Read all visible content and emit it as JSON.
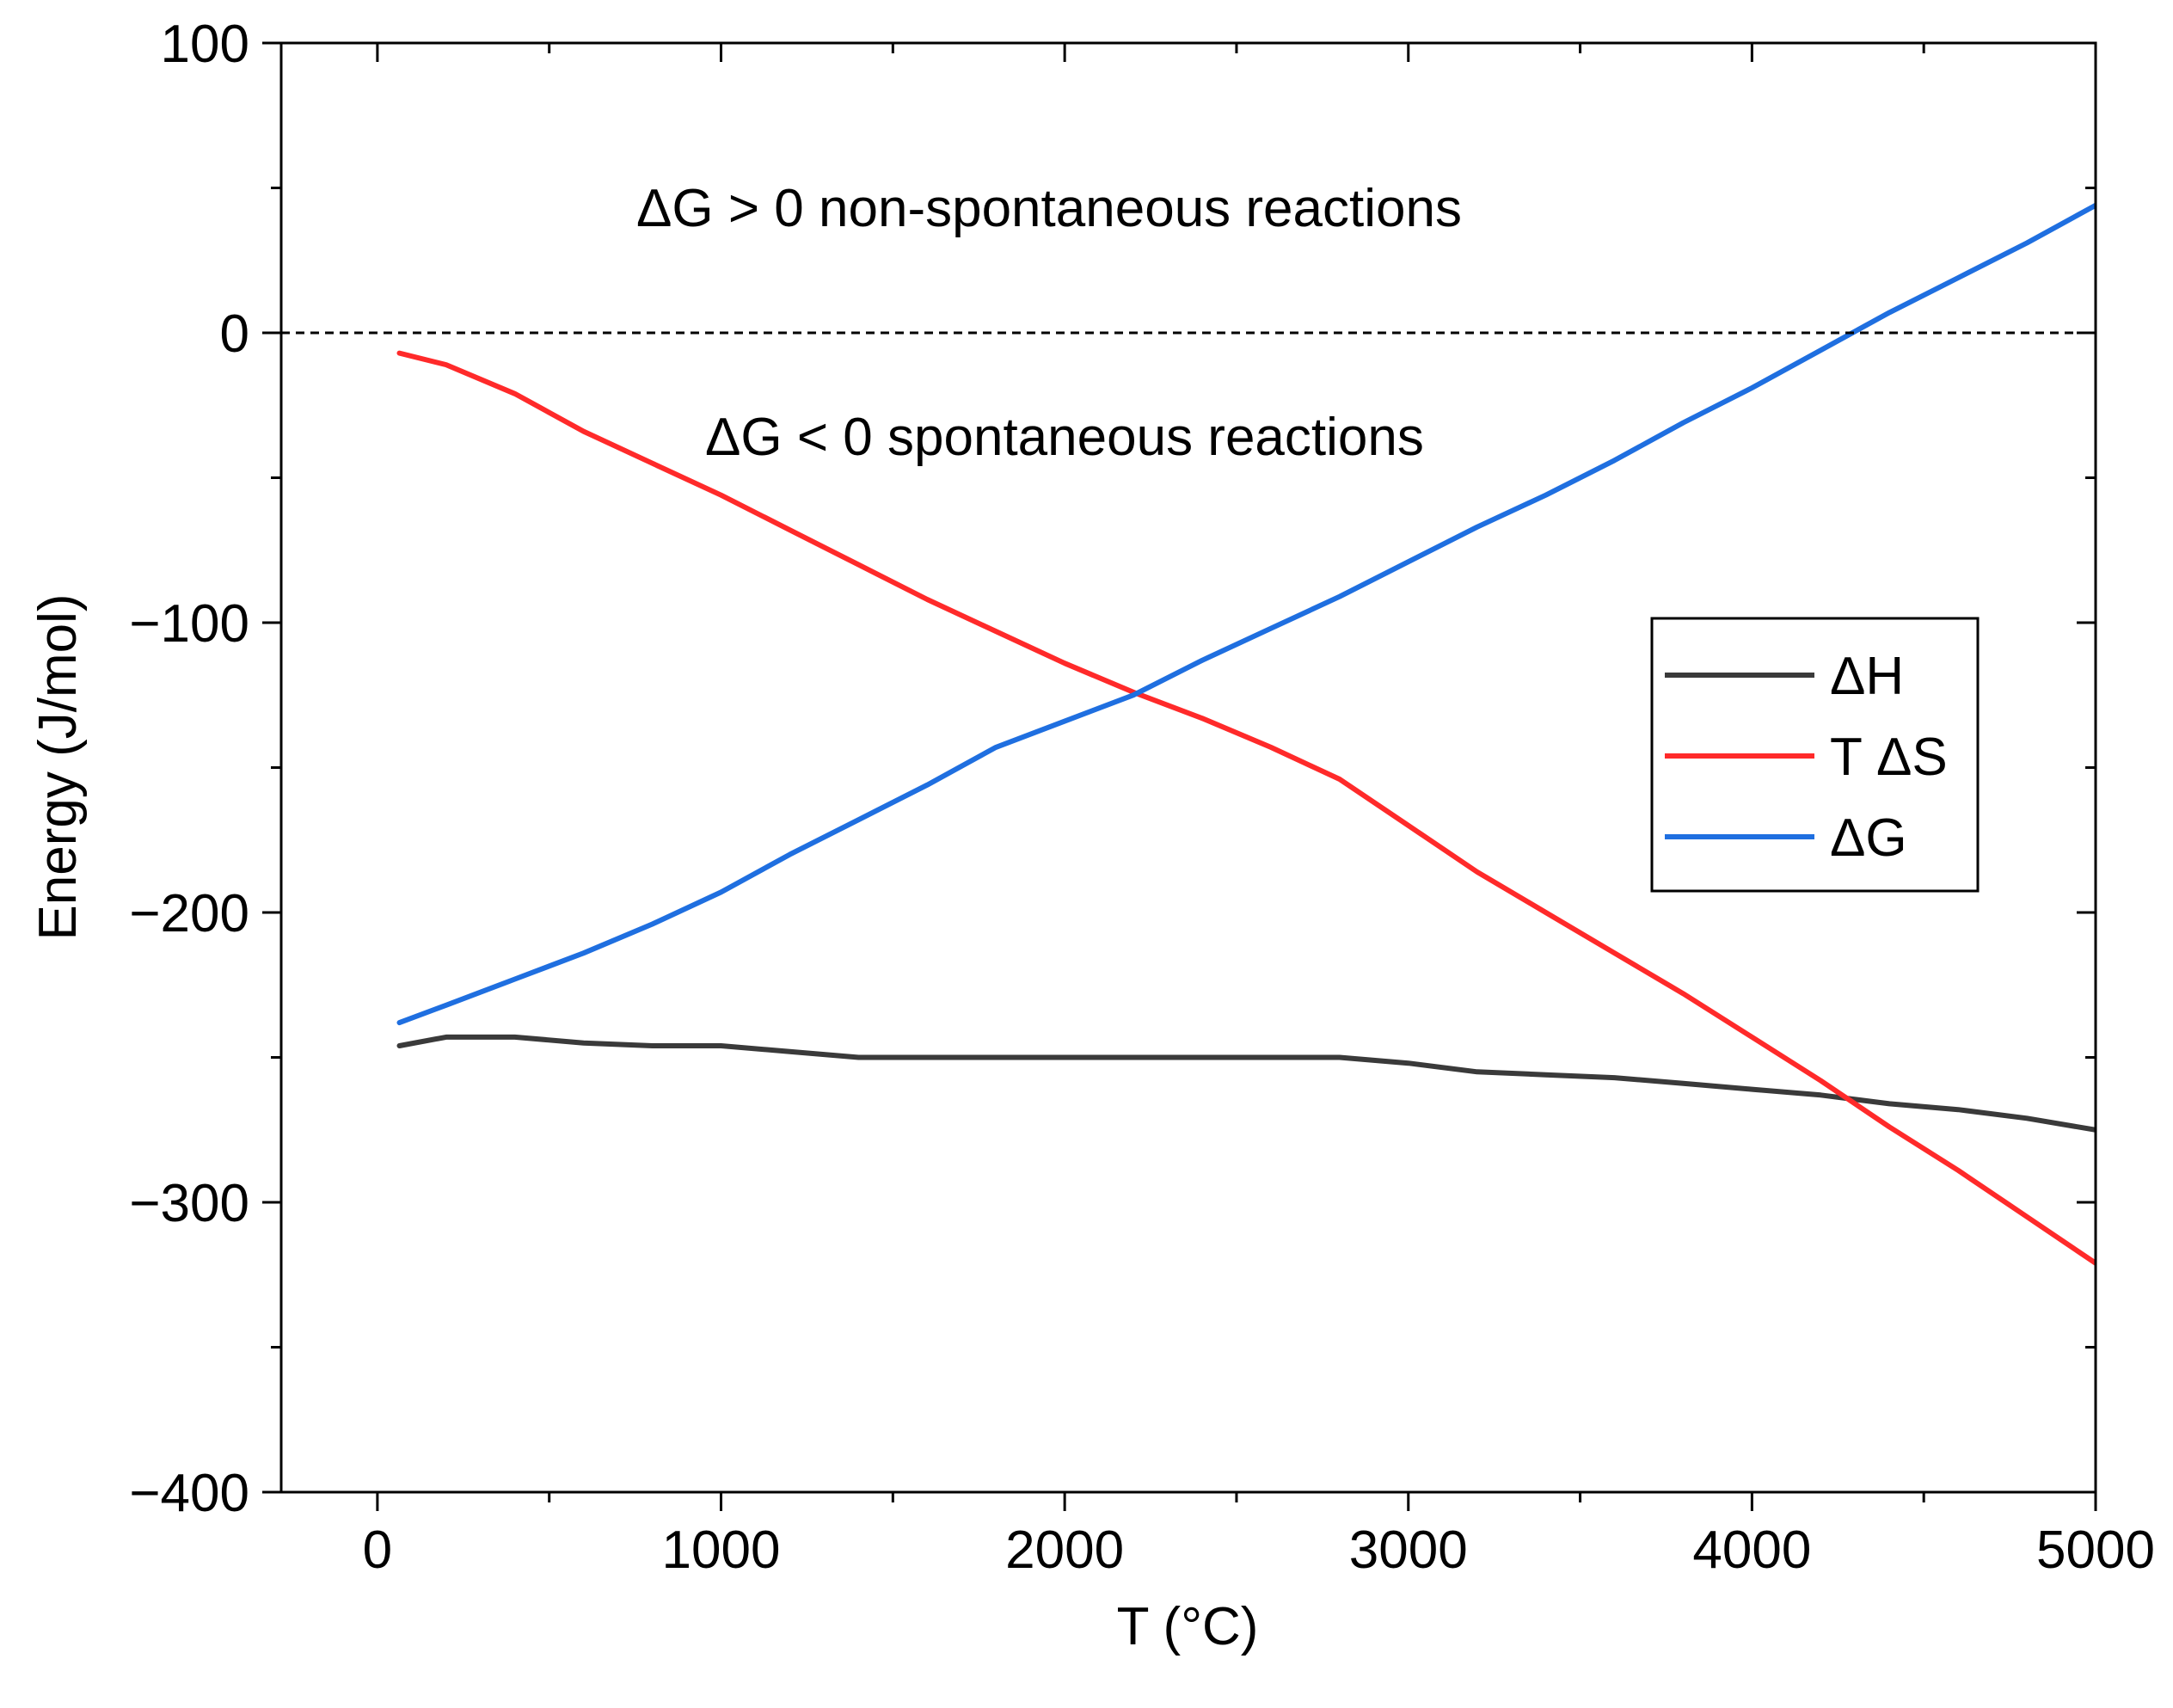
{
  "chart_data": {
    "type": "line",
    "xlabel": "T (°C)",
    "ylabel": "Energy (J/mol)",
    "xlim": [
      -280,
      5000
    ],
    "ylim": [
      -400,
      100
    ],
    "x_ticks": [
      0,
      1000,
      2000,
      3000,
      4000,
      5000
    ],
    "x_tick_labels": [
      "0",
      "1000",
      "2000",
      "3000",
      "4000",
      "5000"
    ],
    "y_ticks": [
      -400,
      -300,
      -200,
      -100,
      0,
      100
    ],
    "y_tick_labels": [
      "−400",
      "−300",
      "−200",
      "−100",
      "0",
      "100"
    ],
    "reference_line": {
      "y": 0,
      "style": "dashed",
      "color": "#000000"
    },
    "annotations": [
      {
        "text": "ΔG > 0 non-spontaneous reactions",
        "x": 750,
        "y": 43
      },
      {
        "text": "ΔG < 0 spontaneous reactions",
        "x": 950,
        "y": -36
      }
    ],
    "legend_position": "right",
    "series": [
      {
        "name": "ΔH",
        "color": "#3a3a3a",
        "x": [
          64,
          200,
          400,
          600,
          800,
          1000,
          1200,
          1400,
          1600,
          1800,
          2000,
          2200,
          2400,
          2600,
          2800,
          3000,
          3200,
          3400,
          3600,
          3800,
          4000,
          4200,
          4400,
          4600,
          4800,
          5000
        ],
        "y": [
          -246,
          -243,
          -243,
          -245,
          -246,
          -246,
          -248,
          -250,
          -250,
          -250,
          -250,
          -250,
          -250,
          -250,
          -250,
          -252,
          -255,
          -256,
          -257,
          -259,
          -261,
          -263,
          -266,
          -268,
          -271,
          -275
        ]
      },
      {
        "name": "T ΔS",
        "color": "#ff2a2a",
        "x": [
          64,
          200,
          400,
          600,
          800,
          1000,
          1200,
          1400,
          1600,
          1800,
          2000,
          2200,
          2400,
          2600,
          2800,
          3000,
          3200,
          3400,
          3600,
          3800,
          4000,
          4200,
          4400,
          4600,
          4800,
          5000
        ],
        "y": [
          -7,
          -11,
          -21,
          -34,
          -45,
          -56,
          -68,
          -80,
          -92,
          -103,
          -114,
          -124,
          -133,
          -143,
          -154,
          -170,
          -186,
          -200,
          -214,
          -228,
          -243,
          -258,
          -274,
          -289,
          -305,
          -321
        ]
      },
      {
        "name": "ΔG",
        "color": "#1f6fe0",
        "x": [
          64,
          200,
          400,
          600,
          800,
          1000,
          1200,
          1400,
          1600,
          1800,
          2000,
          2200,
          2400,
          2600,
          2800,
          3000,
          3200,
          3400,
          3600,
          3800,
          4000,
          4200,
          4400,
          4600,
          4800,
          5000
        ],
        "y": [
          -238,
          -232,
          -223,
          -214,
          -204,
          -193,
          -180,
          -168,
          -156,
          -143,
          -134,
          -125,
          -113,
          -102,
          -91,
          -79,
          -67,
          -56,
          -44,
          -31,
          -19,
          -6,
          7,
          19,
          31,
          44
        ]
      }
    ]
  }
}
